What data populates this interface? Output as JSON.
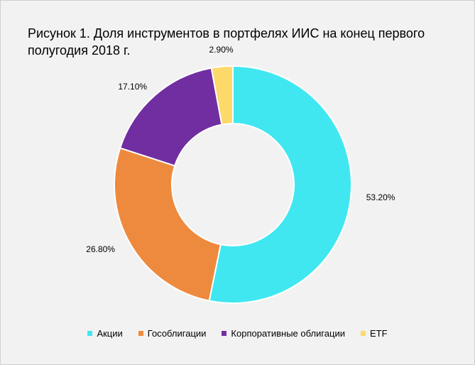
{
  "title": "Рисунок 1. Доля инструментов в портфелях ИИС на конец первого полугодия 2018 г.",
  "chart_data": {
    "type": "pie",
    "donut": true,
    "categories": [
      "Акции",
      "Гособлигации",
      "Корпоративные облигации",
      "ETF"
    ],
    "values": [
      53.2,
      26.8,
      17.1,
      2.9
    ],
    "value_labels": [
      "53.20%",
      "26.80%",
      "17.10%",
      "2.90%"
    ],
    "colors": [
      "#41e7f0",
      "#ee8a3e",
      "#712ea0",
      "#fdd96a"
    ],
    "legend_position": "bottom"
  }
}
